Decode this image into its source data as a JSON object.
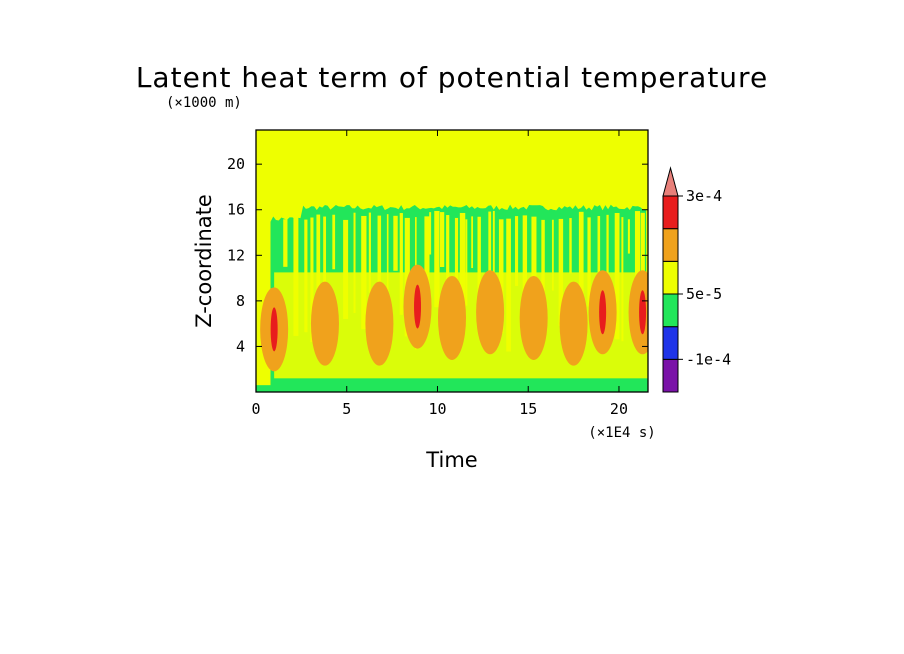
{
  "chart_data": {
    "type": "heatmap",
    "title": "Latent heat term of potential temperature",
    "xlabel": "Time",
    "ylabel": "Z-coordinate",
    "x_unit": "(×1E4 s)",
    "y_unit": "(×1000 m)",
    "xlim": [
      0,
      21.6
    ],
    "ylim": [
      0,
      23
    ],
    "x_ticks": [
      "0",
      "5",
      "10",
      "15",
      "20"
    ],
    "y_ticks": [
      "4",
      "8",
      "12",
      "16",
      "20"
    ],
    "x_tick_values": [
      0,
      5,
      10,
      15,
      20
    ],
    "y_tick_values": [
      4,
      8,
      12,
      16,
      20
    ],
    "colorbar": {
      "labels": [
        "3e-4",
        "5e-5",
        "-1e-4"
      ],
      "levels": [
        {
          "color": "#7a12a8"
        },
        {
          "color": "#1f34e8"
        },
        {
          "color": "#22e65a"
        },
        {
          "color": "#eeff00"
        },
        {
          "color": "#f0a21c"
        },
        {
          "color": "#e81d1d"
        }
      ],
      "extend_color": "#e8807a"
    },
    "fields": {
      "background_level": "#eeff00",
      "active_top": 16.2,
      "active_start": 0.8,
      "heating_max_height": 10.5,
      "heating_cells": [
        {
          "t": 1.0,
          "z": 5.5,
          "level": "#e81d1d"
        },
        {
          "t": 3.8,
          "z": 6.0,
          "level": "#f0a21c"
        },
        {
          "t": 6.8,
          "z": 6.0,
          "level": "#f0a21c"
        },
        {
          "t": 8.9,
          "z": 7.5,
          "level": "#e81d1d"
        },
        {
          "t": 10.8,
          "z": 6.5,
          "level": "#f0a21c"
        },
        {
          "t": 12.9,
          "z": 7.0,
          "level": "#f0a21c"
        },
        {
          "t": 15.3,
          "z": 6.5,
          "level": "#f0a21c"
        },
        {
          "t": 17.5,
          "z": 6.0,
          "level": "#f0a21c"
        },
        {
          "t": 19.1,
          "z": 7.0,
          "level": "#e81d1d"
        },
        {
          "t": 21.3,
          "z": 7.0,
          "level": "#e81d1d"
        }
      ]
    }
  }
}
